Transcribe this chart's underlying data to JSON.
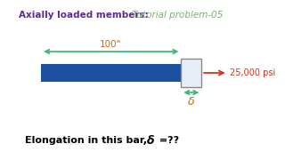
{
  "title_bold": "Axially loaded members: ",
  "title_italic": "Tutorial problem-05",
  "title_bold_color": "#5B2D8E",
  "title_italic_color": "#7BAF72",
  "bg_color": "#FFFFFF",
  "bar_color": "#1B4FA0",
  "small_box_facecolor": "#E8EEF8",
  "small_box_edgecolor": "#888888",
  "arrow_color": "#CC3322",
  "dim_color": "#3CB371",
  "dim_label_color": "#CC6600",
  "delta_label_color": "#CC6600",
  "force_label": "25,000 psi",
  "dim_label": "100\"",
  "delta_label": "δ",
  "bottom_text_1": "Elongation in this bar,",
  "bottom_text_delta": "δ",
  "bottom_text_2": " =??"
}
